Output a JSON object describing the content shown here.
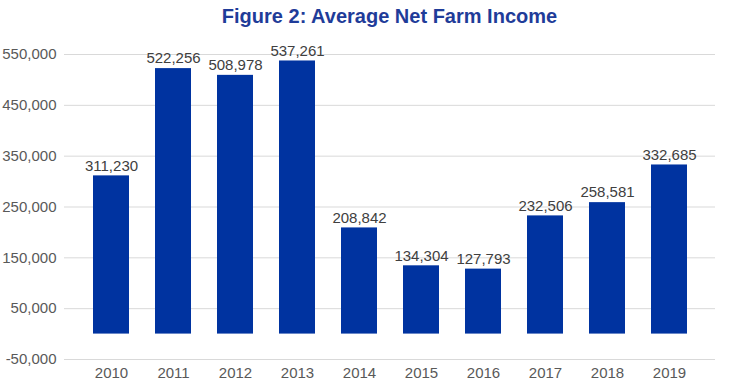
{
  "chart_data": {
    "type": "bar",
    "title": "Figure 2:  Average Net Farm Income",
    "categories": [
      "2010",
      "2011",
      "2012",
      "2013",
      "2014",
      "2015",
      "2016",
      "2017",
      "2018",
      "2019"
    ],
    "values": [
      311230,
      522256,
      508978,
      537261,
      208842,
      134304,
      127793,
      232506,
      258581,
      332685
    ],
    "value_labels": [
      "311,230",
      "522,256",
      "508,978",
      "537,261",
      "208,842",
      "134,304",
      "127,793",
      "232,506",
      "258,581",
      "332,685"
    ],
    "color": "#0033a0",
    "ylim": [
      -50000,
      550000
    ],
    "yticks": [
      {
        "value": -50000,
        "label": "-50,000"
      },
      {
        "value": 50000,
        "label": "50,000"
      },
      {
        "value": 150000,
        "label": "150,000"
      },
      {
        "value": 250000,
        "label": "250,000"
      },
      {
        "value": 350000,
        "label": "350,000"
      },
      {
        "value": 450000,
        "label": "450,000"
      },
      {
        "value": 550000,
        "label": "550,000"
      }
    ],
    "grid": true,
    "data_labels": true
  }
}
